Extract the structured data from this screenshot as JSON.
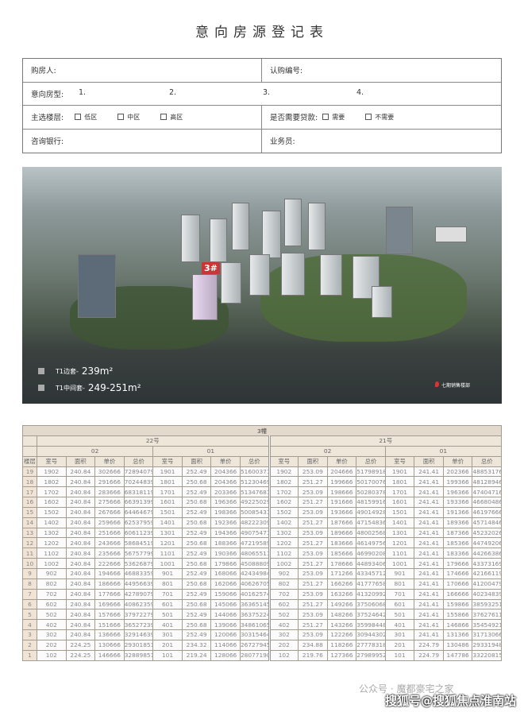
{
  "title": "意向房源登记表",
  "form": {
    "buyer_label": "购房人:",
    "sub_no_label": "认购编号:",
    "type_label": "意向房型:",
    "type_slots": [
      "1.",
      "2.",
      "3.",
      "4."
    ],
    "floor_label": "主选楼层:",
    "floor_options": [
      "低区",
      "中区",
      "高区"
    ],
    "loan_label": "是否需要贷款:",
    "loan_options": [
      "需要",
      "不需要"
    ],
    "bank_label": "咨询银行:",
    "agent_label": "业务员:"
  },
  "aerial": {
    "building_tag": "3#",
    "legend": [
      {
        "label": "T1边套-",
        "area": "239m²"
      },
      {
        "label": "T1中间套-",
        "area": "249-251m²"
      }
    ],
    "location_pin": "七期销售楼部"
  },
  "table": {
    "building": "3幢",
    "groups": [
      "22号",
      "21号"
    ],
    "units": [
      "02",
      "01",
      "02",
      "01"
    ],
    "floor_header": "楼层",
    "col_headers": [
      "室号",
      "面积",
      "单价",
      "总价"
    ],
    "rows": [
      [
        "19",
        "1902",
        "240.84",
        "302666",
        "72894079",
        "1901",
        "252.49",
        "204366",
        "51600371",
        "1902",
        "253.09",
        "204666",
        "51798918",
        "1901",
        "241.41",
        "202366",
        "48853176"
      ],
      [
        "18",
        "1802",
        "240.84",
        "291666",
        "70244839",
        "1801",
        "250.68",
        "204366",
        "51230469",
        "1802",
        "251.27",
        "199666",
        "50170076",
        "1801",
        "241.41",
        "199366",
        "48128946"
      ],
      [
        "17",
        "1702",
        "240.84",
        "283666",
        "68318119",
        "1701",
        "252.49",
        "203366",
        "51347681",
        "1702",
        "253.09",
        "198666",
        "50280378",
        "1701",
        "241.41",
        "196366",
        "47404716"
      ],
      [
        "16",
        "1602",
        "240.84",
        "275666",
        "66391399",
        "1601",
        "250.68",
        "196366",
        "49225029",
        "1602",
        "251.27",
        "191666",
        "48159916",
        "1601",
        "241.41",
        "193366",
        "46680486"
      ],
      [
        "15",
        "1502",
        "240.84",
        "267666",
        "64464679",
        "1501",
        "252.49",
        "198366",
        "50085431",
        "1502",
        "253.09",
        "193666",
        "49014928",
        "1501",
        "241.41",
        "191366",
        "46197666"
      ],
      [
        "14",
        "1402",
        "240.84",
        "259666",
        "62537959",
        "1401",
        "250.68",
        "192366",
        "48222309",
        "1402",
        "251.27",
        "187666",
        "47154836",
        "1401",
        "241.41",
        "189366",
        "45714846"
      ],
      [
        "13",
        "1302",
        "240.84",
        "251666",
        "60611239",
        "1301",
        "252.49",
        "194366",
        "49075471",
        "1302",
        "253.09",
        "189666",
        "48002568",
        "1301",
        "241.41",
        "187366",
        "45232026"
      ],
      [
        "12",
        "1202",
        "240.84",
        "243666",
        "58684519",
        "1201",
        "250.68",
        "188366",
        "47219589",
        "1202",
        "251.27",
        "183666",
        "46149756",
        "1201",
        "241.41",
        "185366",
        "44749206"
      ],
      [
        "11",
        "1102",
        "240.84",
        "235666",
        "56757799",
        "1101",
        "252.49",
        "190366",
        "48065511",
        "1102",
        "253.09",
        "185666",
        "46990208",
        "1101",
        "241.41",
        "183366",
        "44266386"
      ],
      [
        "10",
        "1002",
        "240.84",
        "222666",
        "53626879",
        "1001",
        "250.68",
        "179866",
        "45088809",
        "1002",
        "251.27",
        "178666",
        "44893406",
        "1001",
        "241.41",
        "179666",
        "43373169"
      ],
      [
        "9",
        "902",
        "240.84",
        "194666",
        "46883359",
        "901",
        "252.49",
        "168066",
        "42434984",
        "902",
        "253.09",
        "171266",
        "43345712",
        "901",
        "241.41",
        "174666",
        "42166119"
      ],
      [
        "8",
        "802",
        "240.84",
        "186666",
        "44956639",
        "801",
        "250.68",
        "162066",
        "40626705",
        "802",
        "251.27",
        "166266",
        "41777658",
        "801",
        "241.41",
        "170666",
        "41200479"
      ],
      [
        "7",
        "702",
        "240.84",
        "177666",
        "42789079",
        "701",
        "252.49",
        "159066",
        "40162574",
        "702",
        "253.09",
        "163266",
        "41320992",
        "701",
        "241.41",
        "166666",
        "40234839"
      ],
      [
        "6",
        "602",
        "240.84",
        "169666",
        "40862359",
        "601",
        "250.68",
        "145066",
        "36365145",
        "602",
        "251.27",
        "149266",
        "37506068",
        "601",
        "241.41",
        "159866",
        "38593251"
      ],
      [
        "5",
        "502",
        "240.84",
        "157666",
        "37972279",
        "501",
        "252.49",
        "144066",
        "36375224",
        "502",
        "253.09",
        "148266",
        "37524642",
        "501",
        "241.41",
        "155866",
        "37627611"
      ],
      [
        "4",
        "402",
        "240.84",
        "151666",
        "36527239",
        "401",
        "250.68",
        "139066",
        "34861065",
        "402",
        "251.27",
        "143266",
        "35998448",
        "401",
        "241.41",
        "146866",
        "35454921"
      ],
      [
        "3",
        "302",
        "240.84",
        "136666",
        "32914639",
        "301",
        "252.49",
        "120066",
        "30315464",
        "302",
        "253.09",
        "122266",
        "30944302",
        "301",
        "241.41",
        "131366",
        "31713066"
      ],
      [
        "2",
        "202",
        "224.25",
        "130666",
        "29301851",
        "201",
        "234.32",
        "114066",
        "26727945",
        "202",
        "234.88",
        "118266",
        "27778318",
        "201",
        "224.79",
        "130486",
        "29331948"
      ],
      [
        "1",
        "102",
        "224.25",
        "146666",
        "32889851",
        "101",
        "219.24",
        "128066",
        "28077190",
        "102",
        "219.76",
        "127366",
        "27989952",
        "101",
        "224.79",
        "147786",
        "33220815"
      ]
    ]
  },
  "watermarks": {
    "wechat": "公众号 · 魔都豪宅之家",
    "sohu": "搜狐号@搜狐焦点淮南站"
  }
}
